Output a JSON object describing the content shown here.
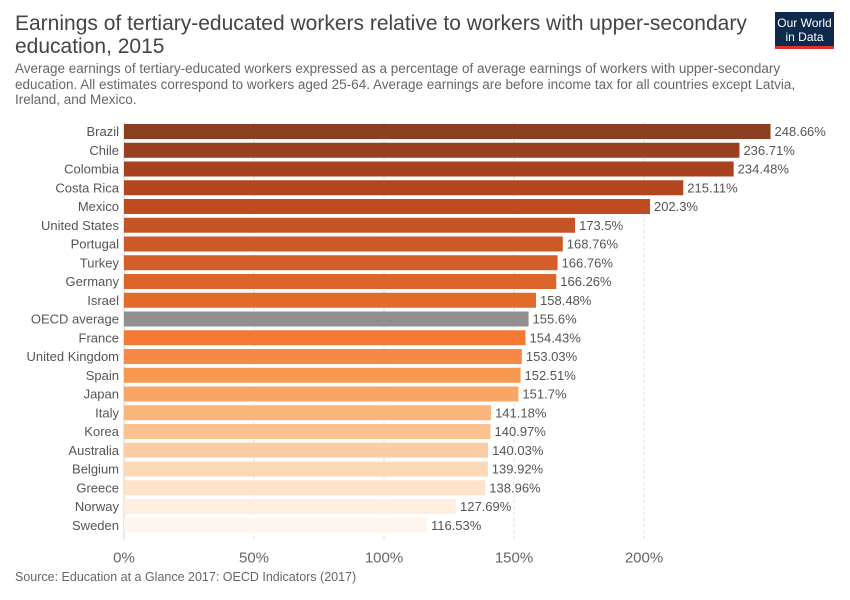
{
  "header": {
    "title": "Earnings of tertiary-educated workers relative to workers with upper-secondary education, 2015",
    "subtitle": "Average earnings of tertiary-educated workers expressed as a percentage of average earnings of workers with upper-secondary education. All estimates correspond to workers aged 25-64. Average earnings are before income tax for all countries except Latvia, Ireland, and Mexico.",
    "logo_line1": "Our World",
    "logo_line2": "in Data"
  },
  "footer": {
    "source": "Source: Education at a Glance 2017: OECD Indicators (2017)"
  },
  "chart_data": {
    "type": "bar",
    "orientation": "horizontal",
    "title": "Earnings of tertiary-educated workers relative to workers with upper-secondary education, 2015",
    "xlabel": "",
    "ylabel": "",
    "xlim": [
      0,
      250
    ],
    "x_ticks": [
      0,
      50,
      100,
      150,
      200
    ],
    "x_tick_labels": [
      "0%",
      "50%",
      "100%",
      "150%",
      "200%"
    ],
    "grid": "vertical dashed",
    "categories": [
      "Brazil",
      "Chile",
      "Colombia",
      "Costa Rica",
      "Mexico",
      "United States",
      "Portugal",
      "Turkey",
      "Germany",
      "Israel",
      "OECD average",
      "France",
      "United Kingdom",
      "Spain",
      "Japan",
      "Italy",
      "Korea",
      "Australia",
      "Belgium",
      "Greece",
      "Norway",
      "Sweden"
    ],
    "values": [
      248.66,
      236.71,
      234.48,
      215.11,
      202.3,
      173.5,
      168.76,
      166.76,
      166.26,
      158.48,
      155.6,
      154.43,
      153.03,
      152.51,
      151.7,
      141.18,
      140.97,
      140.03,
      139.92,
      138.96,
      127.69,
      116.53
    ],
    "value_labels": [
      "248.66%",
      "236.71%",
      "234.48%",
      "215.11%",
      "202.3%",
      "173.5%",
      "168.76%",
      "166.76%",
      "166.26%",
      "158.48%",
      "155.6%",
      "154.43%",
      "153.03%",
      "152.51%",
      "151.7%",
      "141.18%",
      "140.97%",
      "140.03%",
      "139.92%",
      "138.96%",
      "127.69%",
      "116.53%"
    ],
    "colors": [
      "#8c3e21",
      "#993f20",
      "#a6421f",
      "#b2471f",
      "#bf4c1f",
      "#c55527",
      "#cc5a29",
      "#d45e2a",
      "#dc6629",
      "#e36b2a",
      "#8f8f8f",
      "#f37a34",
      "#f68a45",
      "#f7984f",
      "#f9a563",
      "#fbb47a",
      "#fbc18f",
      "#fccda4",
      "#fcd9b8",
      "#fde3c9",
      "#feeee0",
      "#fff5ef"
    ]
  }
}
